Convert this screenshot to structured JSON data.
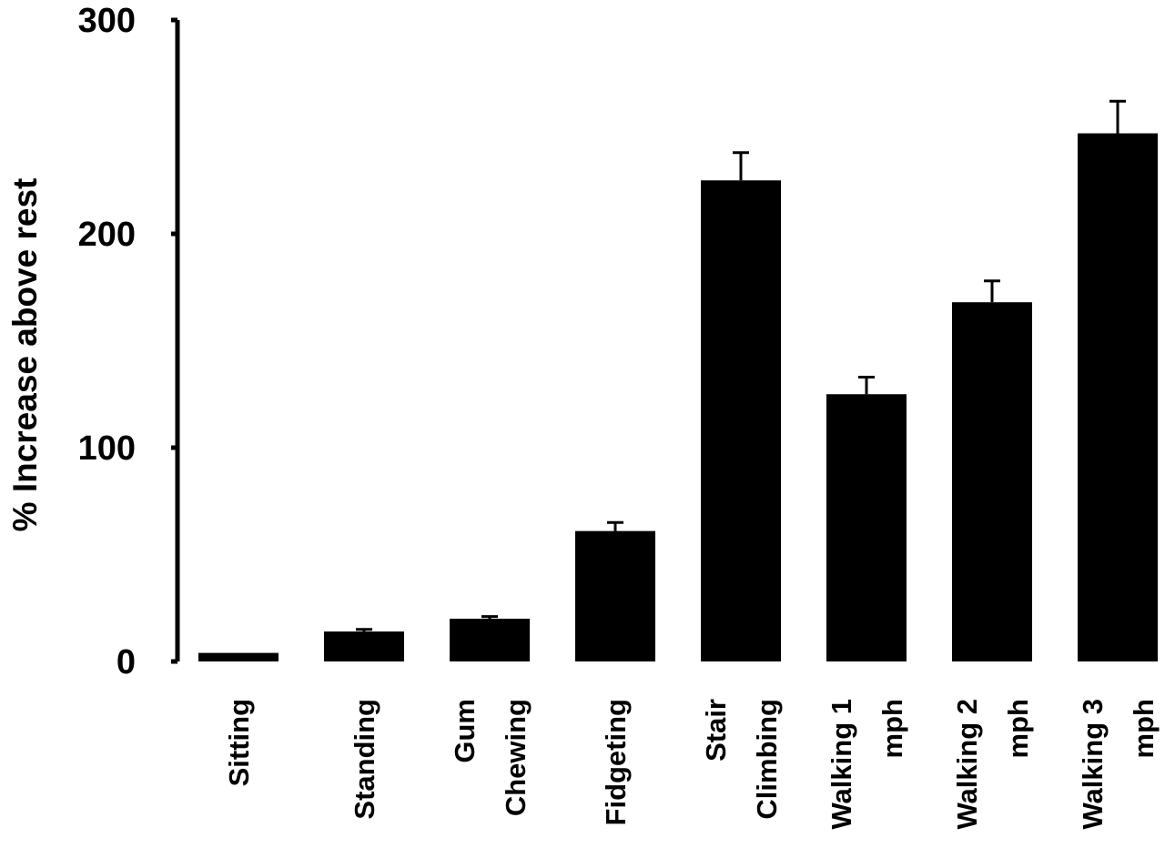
{
  "chart_data": {
    "type": "bar",
    "title": "",
    "xlabel": "",
    "ylabel": "% Increase above rest",
    "ylim": [
      0,
      300
    ],
    "yticks": [
      0,
      100,
      200,
      300
    ],
    "grid": false,
    "legend": "none",
    "bar_color": "#000000",
    "categories": [
      [
        "Sitting"
      ],
      [
        "Standing"
      ],
      [
        "Gum",
        "Chewing"
      ],
      [
        "Fidgeting"
      ],
      [
        "Stair",
        "Climbing"
      ],
      [
        "Walking 1",
        "mph"
      ],
      [
        "Walking 2",
        "mph"
      ],
      [
        "Walking 3",
        "mph"
      ]
    ],
    "values": [
      4,
      14,
      20,
      61,
      225,
      125,
      168,
      247
    ],
    "errors": [
      0,
      1,
      1,
      4,
      13,
      8,
      10,
      15
    ]
  }
}
